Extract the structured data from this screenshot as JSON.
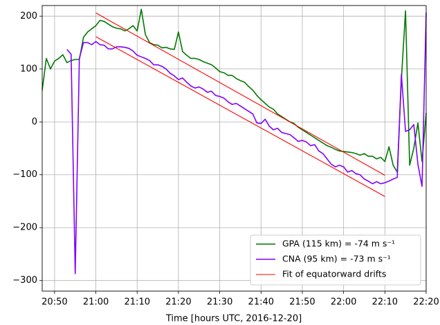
{
  "chart_data": {
    "type": "line",
    "xlabel": "Time [hours UTC, 2016-12-20]",
    "x": [
      "20:47",
      "20:48",
      "20:49",
      "20:50",
      "20:51",
      "20:52",
      "20:53",
      "20:54",
      "20:55",
      "20:56",
      "20:57",
      "20:58",
      "20:59",
      "21:00",
      "21:01",
      "21:02",
      "21:03",
      "21:04",
      "21:05",
      "21:06",
      "21:07",
      "21:08",
      "21:09",
      "21:10",
      "21:11",
      "21:12",
      "21:13",
      "21:14",
      "21:15",
      "21:16",
      "21:17",
      "21:18",
      "21:19",
      "21:20",
      "21:21",
      "21:22",
      "21:23",
      "21:24",
      "21:25",
      "21:26",
      "21:27",
      "21:28",
      "21:29",
      "21:30",
      "21:31",
      "21:32",
      "21:33",
      "21:34",
      "21:35",
      "21:36",
      "21:37",
      "21:38",
      "21:39",
      "21:40",
      "21:41",
      "21:42",
      "21:43",
      "21:44",
      "21:45",
      "21:46",
      "21:47",
      "21:48",
      "21:49",
      "21:50",
      "21:51",
      "21:52",
      "21:53",
      "21:54",
      "21:55",
      "21:56",
      "21:57",
      "21:58",
      "21:59",
      "22:00",
      "22:01",
      "22:02",
      "22:03",
      "22:04",
      "22:05",
      "22:06",
      "22:07",
      "22:08",
      "22:09",
      "22:10",
      "22:11",
      "22:12",
      "22:13",
      "22:14",
      "22:15",
      "22:16",
      "22:17",
      "22:18",
      "22:19",
      "22:20"
    ],
    "series": [
      {
        "name": "GPA (115 km) = -74 m s⁻¹",
        "color": "#007800",
        "values": [
          60,
          120,
          100,
          115,
          120,
          127,
          112,
          116,
          118,
          118,
          160,
          170,
          176,
          182,
          192,
          190,
          185,
          180,
          177,
          176,
          172,
          176,
          182,
          172,
          213,
          165,
          150,
          146,
          145,
          140,
          141,
          138,
          137,
          170,
          133,
          126,
          120,
          120,
          118,
          114,
          111,
          108,
          102,
          95,
          93,
          88,
          88,
          82,
          78,
          75,
          67,
          60,
          50,
          42,
          35,
          28,
          24,
          15,
          10,
          5,
          0,
          -3,
          -10,
          -15,
          -20,
          -25,
          -30,
          -35,
          -40,
          -45,
          -48,
          -52,
          -55,
          -56,
          -57,
          -58,
          -60,
          -63,
          -60,
          -65,
          -65,
          -70,
          -67,
          -75,
          -47,
          -82,
          -95,
          80,
          210,
          -82,
          -50,
          -2,
          -75,
          17
        ]
      },
      {
        "name": "CNA (95 km) = -73 m s⁻¹",
        "color": "#7f00ff",
        "values": [
          null,
          null,
          null,
          null,
          null,
          null,
          137,
          128,
          -287,
          120,
          150,
          150,
          146,
          152,
          146,
          145,
          138,
          138,
          142,
          142,
          141,
          139,
          134,
          126,
          123,
          120,
          116,
          108,
          108,
          105,
          100,
          92,
          87,
          80,
          83,
          75,
          68,
          64,
          66,
          62,
          56,
          58,
          50,
          48,
          45,
          38,
          33,
          35,
          30,
          25,
          20,
          15,
          -2,
          -3,
          5,
          -8,
          -15,
          -12,
          -20,
          -22,
          -24,
          -30,
          -37,
          -35,
          -38,
          -45,
          -43,
          -55,
          -60,
          -70,
          -80,
          -85,
          -82,
          -85,
          -95,
          -92,
          -98,
          -100,
          -108,
          -112,
          -117,
          -113,
          -117,
          -115,
          -112,
          -108,
          -105,
          90,
          -18,
          -15,
          -5,
          -80,
          -122,
          207
        ]
      }
    ],
    "fit": {
      "name": "Fit of equatorward drifts",
      "color": "#ff0000",
      "lines": [
        {
          "x": [
            "21:00",
            "22:10"
          ],
          "values": [
            206,
            -101
          ]
        },
        {
          "x": [
            "21:00",
            "22:10"
          ],
          "values": [
            161,
            -141
          ]
        }
      ]
    },
    "xlim": [
      "20:47",
      "22:20"
    ],
    "xticks": [
      "20:50",
      "21:00",
      "21:10",
      "21:20",
      "21:30",
      "21:40",
      "21:50",
      "22:00",
      "22:10",
      "22:20"
    ],
    "ylim": [
      -320,
      220
    ],
    "yticks": [
      {
        "value": -300,
        "label": "−300"
      },
      {
        "value": -200,
        "label": "−200"
      },
      {
        "value": -100,
        "label": "−100"
      },
      0,
      100,
      200
    ],
    "grid": true,
    "legend": "lower right"
  }
}
